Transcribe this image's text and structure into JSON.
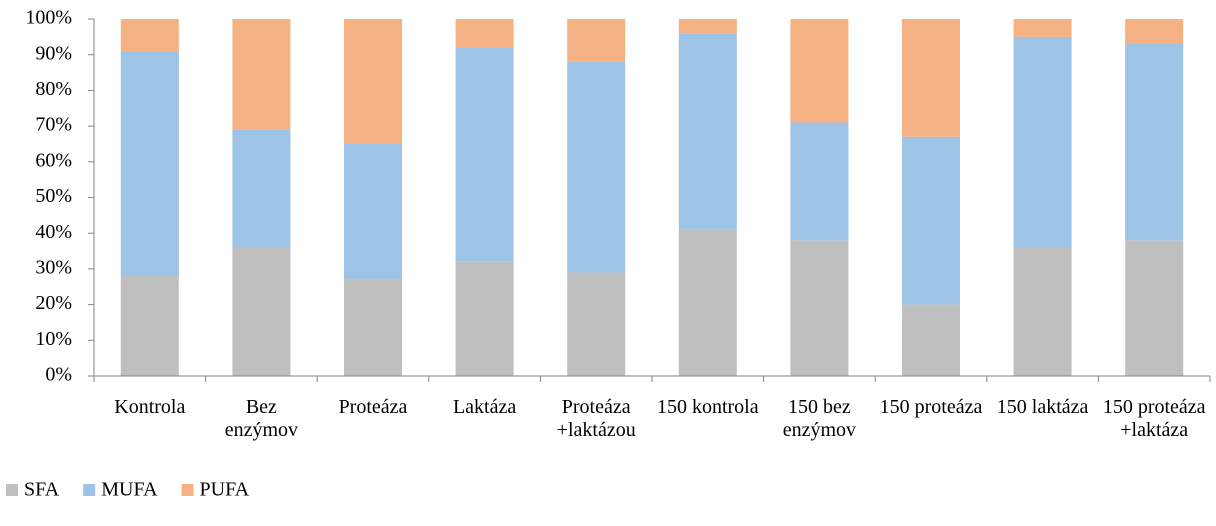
{
  "chart_data": {
    "type": "stacked_bar",
    "categories": [
      "Kontrola",
      "Bez enzýmov",
      "Proteáza",
      "Laktáza",
      "Proteáza +laktázou",
      "150 kontrola",
      "150 bez enzýmov",
      "150 proteáza",
      "150 laktáza",
      "150 proteáza +laktáza"
    ],
    "series": [
      {
        "name": "SFA",
        "color": "#bfbfbf",
        "values": [
          28,
          36,
          27,
          32,
          29,
          41,
          38,
          20,
          36,
          38
        ]
      },
      {
        "name": "MUFA",
        "color": "#9dc3e6",
        "values": [
          63,
          33,
          38,
          60,
          59,
          55,
          33,
          47,
          59,
          55
        ]
      },
      {
        "name": "PUFA",
        "color": "#f4b183",
        "values": [
          9,
          31,
          35,
          8,
          12,
          4,
          29,
          33,
          5,
          7
        ]
      }
    ],
    "ylim": [
      0,
      100
    ],
    "yticks": [
      {
        "value": 0,
        "label": "0%"
      },
      {
        "value": 10,
        "label": "10%"
      },
      {
        "value": 20,
        "label": "20%"
      },
      {
        "value": 30,
        "label": "30%"
      },
      {
        "value": 40,
        "label": "40%"
      },
      {
        "value": 50,
        "label": "50%"
      },
      {
        "value": 60,
        "label": "60%"
      },
      {
        "value": 70,
        "label": "70%"
      },
      {
        "value": 80,
        "label": "80%"
      },
      {
        "value": 90,
        "label": "90%"
      },
      {
        "value": 100,
        "label": "100%"
      }
    ],
    "legend": "bottom-left"
  }
}
